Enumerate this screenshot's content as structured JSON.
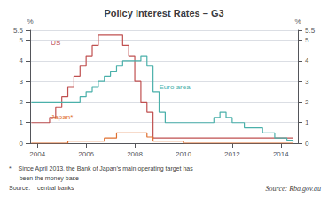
{
  "chart_data": {
    "type": "step",
    "title": "Policy Interest Rates – G3",
    "x": [
      2003.75,
      2004,
      2004.25,
      2004.5,
      2004.75,
      2005,
      2005.25,
      2005.5,
      2005.75,
      2006,
      2006.25,
      2006.5,
      2006.75,
      2007,
      2007.25,
      2007.5,
      2007.75,
      2008,
      2008.25,
      2008.5,
      2008.75,
      2009,
      2009.25,
      2009.5,
      2009.75,
      2010,
      2010.25,
      2010.5,
      2010.75,
      2011,
      2011.25,
      2011.5,
      2011.75,
      2012,
      2012.25,
      2012.5,
      2012.75,
      2013,
      2013.25,
      2013.5,
      2013.75,
      2014,
      2014.25,
      2014.5
    ],
    "series": [
      {
        "color": "#c05050",
        "values": [
          1.0,
          1.0,
          1.0,
          1.25,
          1.75,
          2.25,
          2.75,
          3.25,
          3.75,
          4.25,
          4.75,
          5.25,
          5.25,
          5.25,
          5.25,
          4.75,
          4.25,
          3.0,
          2.0,
          1.5,
          0.25,
          0.25,
          0.25,
          0.25,
          0.25,
          0.25,
          0.25,
          0.25,
          0.25,
          0.25,
          0.25,
          0.25,
          0.25,
          0.25,
          0.25,
          0.25,
          0.25,
          0.25,
          0.25,
          0.25,
          0.25,
          0.25,
          0.25,
          0.25
        ]
      },
      {
        "color": "#4ab0aa",
        "values": [
          2.0,
          2.0,
          2.0,
          2.0,
          2.0,
          2.0,
          2.0,
          2.0,
          2.25,
          2.5,
          2.75,
          3.0,
          3.25,
          3.5,
          3.75,
          4.0,
          4.0,
          4.0,
          4.25,
          3.75,
          2.5,
          1.5,
          1.0,
          1.0,
          1.0,
          1.0,
          1.0,
          1.0,
          1.0,
          1.0,
          1.25,
          1.5,
          1.25,
          1.0,
          1.0,
          0.75,
          0.75,
          0.75,
          0.5,
          0.5,
          0.25,
          0.25,
          0.15,
          0.05
        ]
      },
      {
        "color": "#e07030",
        "values": [
          0.0,
          0.0,
          0.0,
          0.0,
          0.0,
          0.0,
          0.1,
          0.1,
          0.1,
          0.1,
          0.1,
          0.1,
          0.25,
          0.25,
          0.5,
          0.5,
          0.5,
          0.5,
          0.5,
          0.3,
          0.1,
          0.1,
          0.1,
          0.1,
          0.1,
          0.0,
          0.0,
          0.0,
          0.0,
          0.0,
          0.0,
          0.0,
          0.0,
          0.0,
          0.0,
          0.0,
          0.0,
          0.0,
          0.0,
          0.0,
          0.0,
          0.0,
          0.0,
          0.0
        ]
      }
    ],
    "xlim": [
      2003.7,
      2014.7
    ],
    "xticks": [
      2004,
      2006,
      2008,
      2010,
      2012,
      2014
    ],
    "ylim": [
      0,
      5.5
    ],
    "yticks": [
      0,
      1,
      2,
      3,
      4,
      5
    ],
    "y2lim": [
      0,
      5.5
    ],
    "y2ticks": [
      0,
      1,
      2,
      3,
      4,
      5
    ],
    "ylabel": "%",
    "y2label": "%",
    "grid": true,
    "annotations": [
      {
        "text": "US",
        "x": 2004.55,
        "y": 4.7,
        "color": "#c05050"
      },
      {
        "text": "Euro area",
        "x": 2009.0,
        "y": 2.55,
        "color": "#4ab0aa"
      },
      {
        "text": "Japan*",
        "x": 2004.55,
        "y": 1.1,
        "color": "#e07030"
      }
    ],
    "footnotes": [
      "*    Since April 2013, the Bank of Japan’s main operating target has",
      "      been the money base",
      "Source:    central banks"
    ],
    "source": "Source: Rba.gov.au"
  }
}
